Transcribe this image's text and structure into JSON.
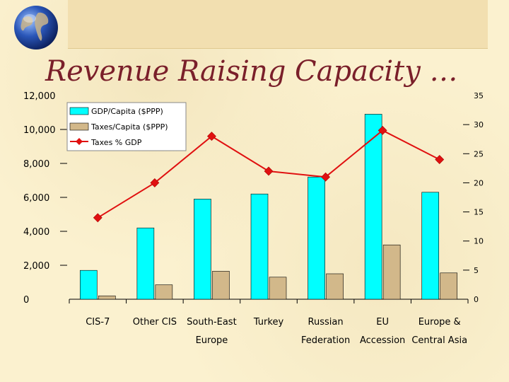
{
  "slide": {
    "title": "Revenue Raising Capacity …"
  },
  "icons": {
    "globe": "globe-icon"
  },
  "colors": {
    "background": "#fbf1cf",
    "title": "#7a1f2a",
    "gdp_bar": "#00ffff",
    "taxes_bar": "#d2b88a",
    "line": "#e01010"
  },
  "chart_data": {
    "type": "bar",
    "categories": [
      [
        "CIS-7"
      ],
      [
        "Other CIS"
      ],
      [
        "South-East",
        "Europe"
      ],
      [
        "Turkey"
      ],
      [
        "Russian",
        "Federation"
      ],
      [
        "EU",
        "Accession"
      ],
      [
        "Europe &",
        "Central Asia"
      ]
    ],
    "series": [
      {
        "name": "GDP/Capita ($PPP)",
        "type": "bar",
        "axis": "left",
        "values": [
          1700,
          4200,
          5900,
          6200,
          7200,
          10900,
          6300
        ]
      },
      {
        "name": "Taxes/Capita ($PPP)",
        "type": "bar",
        "axis": "left",
        "values": [
          200,
          850,
          1650,
          1300,
          1500,
          3200,
          1550
        ]
      },
      {
        "name": "Taxes % GDP",
        "type": "line",
        "axis": "right",
        "values": [
          14,
          20,
          28,
          22,
          21,
          29,
          24
        ]
      }
    ],
    "y_left": {
      "range": [
        0,
        12000
      ],
      "ticks": [
        "0",
        "2,000",
        "4,000",
        "6,000",
        "8,000",
        "10,000",
        "12,000"
      ]
    },
    "y_right": {
      "range": [
        0,
        35
      ],
      "ticks": [
        "0",
        "5",
        "10",
        "15",
        "20",
        "25",
        "30",
        "35"
      ]
    },
    "grid": false,
    "legend": "top-left"
  }
}
